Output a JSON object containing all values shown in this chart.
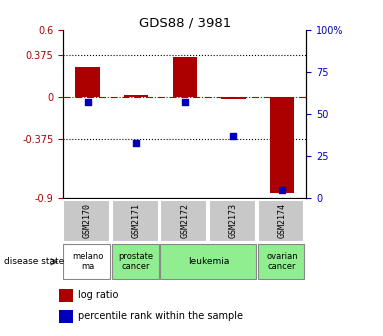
{
  "title": "GDS88 / 3981",
  "samples": [
    "GSM2170",
    "GSM2171",
    "GSM2172",
    "GSM2173",
    "GSM2174"
  ],
  "log_ratio": [
    0.27,
    0.022,
    0.365,
    -0.018,
    -0.85
  ],
  "percentile": [
    57,
    33,
    57,
    37,
    5
  ],
  "disease_states": [
    {
      "label": "melano\nma",
      "start": 0,
      "end": 1,
      "color": "#ffffff"
    },
    {
      "label": "prostate\ncancer",
      "start": 1,
      "end": 2,
      "color": "#90EE90"
    },
    {
      "label": "leukemia",
      "start": 2,
      "end": 4,
      "color": "#90EE90"
    },
    {
      "label": "ovarian\ncancer",
      "start": 4,
      "end": 5,
      "color": "#90EE90"
    }
  ],
  "ylim_left": [
    -0.9,
    0.6
  ],
  "ylim_right": [
    0,
    100
  ],
  "yticks_left": [
    -0.9,
    -0.375,
    0,
    0.375,
    0.6
  ],
  "ytick_labels_left": [
    "-0.9",
    "-0.375",
    "0",
    "0.375",
    "0.6"
  ],
  "yticks_right": [
    0,
    25,
    50,
    75,
    100
  ],
  "bar_color": "#aa0000",
  "square_color": "#0000bb",
  "bar_width": 0.5,
  "square_size": 25,
  "label_bg": "#c8c8c8",
  "label_border": "#ffffff"
}
